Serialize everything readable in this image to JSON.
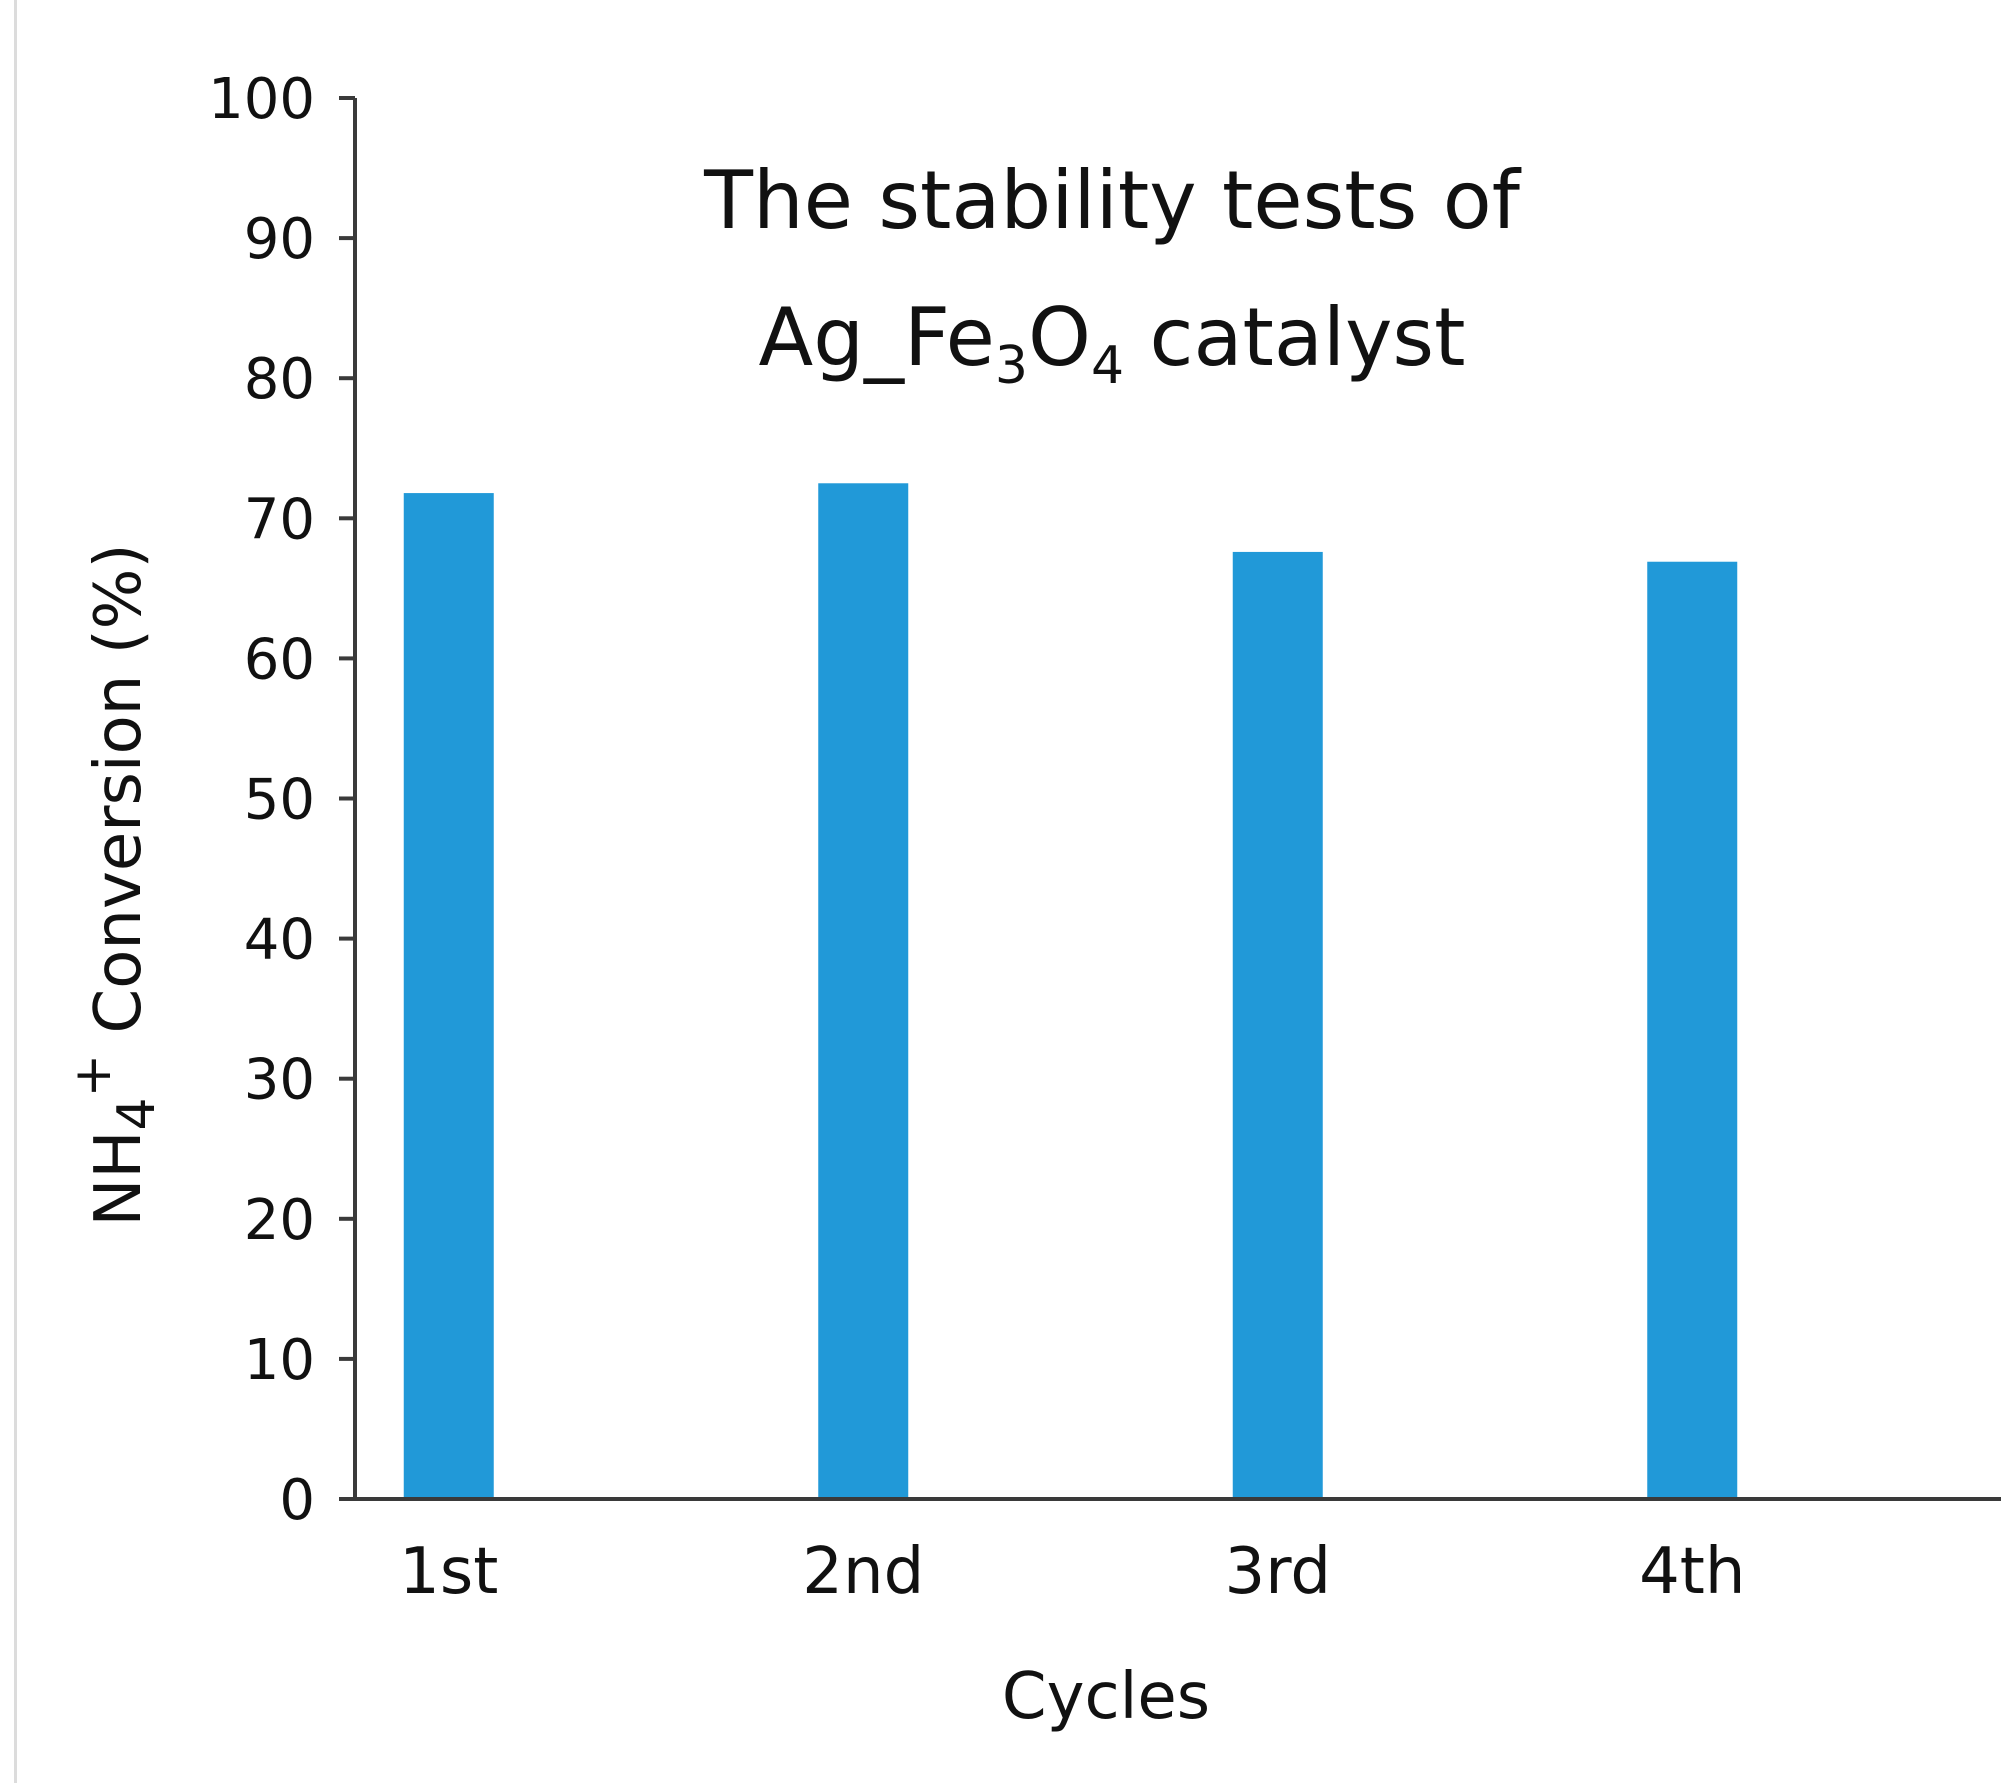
{
  "chart_data": {
    "type": "bar",
    "title": {
      "line1": "The stability tests of",
      "line2": {
        "prefix": "Ag_Fe",
        "sub1": "3",
        "mid": "O",
        "sub2": "4",
        "suffix": " catalyst"
      }
    },
    "xlabel": "Cycles",
    "ylabel": {
      "prefix": "NH",
      "sub": "4",
      "sup": "+",
      "suffix": " Conversion (%)"
    },
    "categories": [
      "1st",
      "2nd",
      "3rd",
      "4th"
    ],
    "values": [
      71.8,
      72.5,
      67.6,
      66.9
    ],
    "ylim": [
      0,
      100
    ],
    "yticks": [
      0,
      10,
      20,
      30,
      40,
      50,
      60,
      70,
      80,
      90,
      100
    ],
    "grid": false,
    "legend": "none",
    "colors": {
      "bar": "#2199d8",
      "axis": "#3a3a3a",
      "text": "#111111"
    }
  }
}
